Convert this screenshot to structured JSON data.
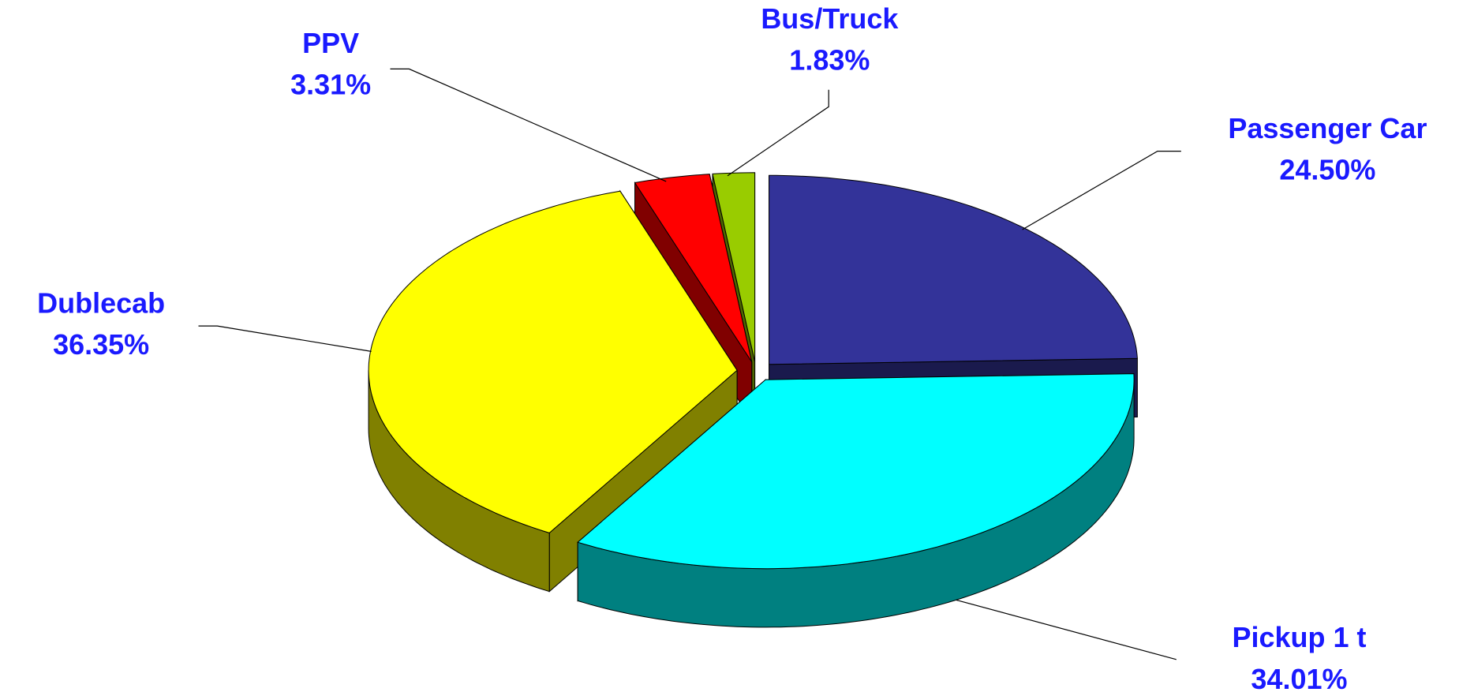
{
  "chart_data": {
    "type": "pie3d",
    "categories": [
      "Passenger Car",
      "Pickup 1 t",
      "Dublecab",
      "PPV",
      "Bus/Truck"
    ],
    "values": [
      24.5,
      34.01,
      36.35,
      3.31,
      1.83
    ],
    "value_labels": [
      "24.50%",
      "34.01%",
      "36.35%",
      "3.31%",
      "1.83%"
    ],
    "colors": [
      "#333399",
      "#00ffff",
      "#ffff00",
      "#ff0000",
      "#99cc00"
    ]
  }
}
